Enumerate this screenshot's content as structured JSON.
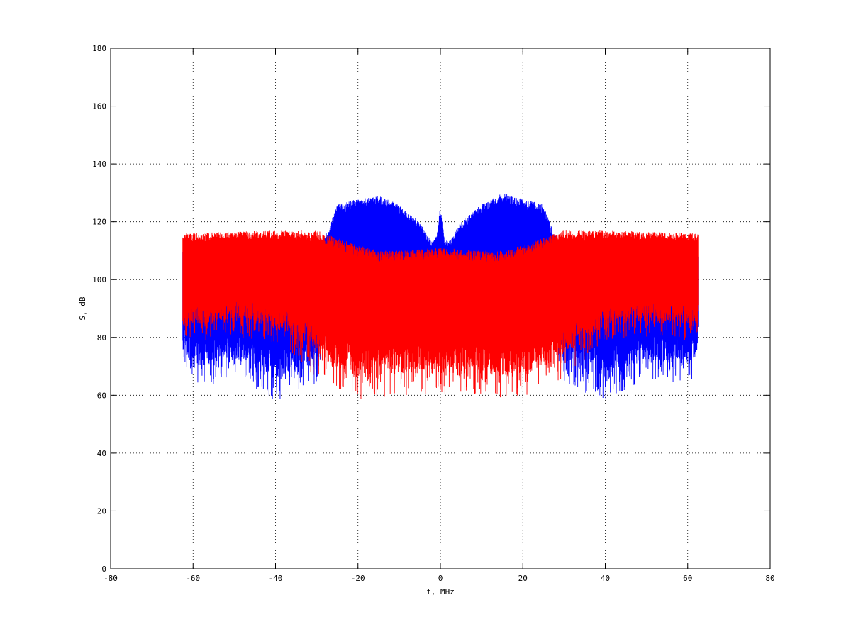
{
  "chart_data": {
    "type": "line",
    "title": "",
    "xlabel": "f, MHz",
    "ylabel": "S, dB",
    "xlim": [
      -80,
      80
    ],
    "ylim": [
      0,
      180
    ],
    "xticks": [
      -80,
      -60,
      -40,
      -20,
      0,
      20,
      40,
      60,
      80
    ],
    "yticks": [
      0,
      20,
      40,
      60,
      80,
      100,
      120,
      140,
      160,
      180
    ],
    "grid": true,
    "legend": "none",
    "series": [
      {
        "color": "#0000ff",
        "x_range": [
          -62.5,
          62.5
        ],
        "upper_envelope": {
          "x": [
            -62.5,
            -60,
            -50,
            -40,
            -30,
            -27,
            -25,
            -20,
            -15,
            -10,
            -5,
            -2,
            -1,
            0,
            1,
            2,
            5,
            10,
            15,
            20,
            25,
            27,
            30,
            40,
            50,
            60,
            62.5
          ],
          "y": [
            110,
            110,
            110,
            109,
            110,
            118,
            126,
            128,
            129,
            126,
            120,
            113,
            115,
            125,
            114,
            113,
            120,
            126,
            130,
            128,
            126,
            118,
            110,
            109,
            110,
            110,
            110
          ]
        },
        "lower_envelope": {
          "x": [
            -62.5,
            -60,
            -50,
            -40,
            -30,
            -27,
            -20,
            -10,
            0,
            10,
            20,
            27,
            30,
            40,
            50,
            60,
            62.5
          ],
          "y": [
            70,
            62,
            66,
            58,
            64,
            82,
            84,
            84,
            84,
            84,
            84,
            82,
            64,
            58,
            66,
            62,
            70
          ]
        }
      },
      {
        "color": "#ff0000",
        "x_range": [
          -62.5,
          62.5
        ],
        "upper_envelope": {
          "x": [
            -62.5,
            -40,
            -30,
            -20,
            -15,
            -10,
            0,
            10,
            15,
            20,
            30,
            40,
            62.5
          ],
          "y": [
            116,
            117,
            117,
            112,
            110,
            110,
            111,
            110,
            110,
            112,
            117,
            117,
            116
          ]
        },
        "lower_envelope": {
          "x": [
            -62.5,
            -50,
            -40,
            -30,
            -20,
            -10,
            0,
            10,
            20,
            30,
            40,
            50,
            62.5
          ],
          "y": [
            78,
            80,
            78,
            66,
            58,
            60,
            60,
            60,
            58,
            66,
            78,
            80,
            78
          ]
        }
      }
    ]
  }
}
